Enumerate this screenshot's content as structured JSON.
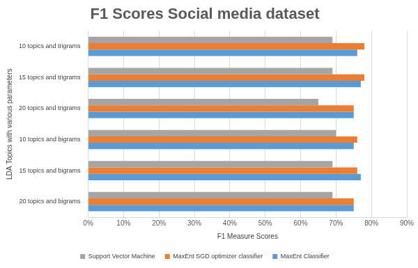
{
  "chart_data": {
    "type": "bar",
    "orientation": "horizontal",
    "title": "F1 Scores Social media dataset",
    "x_label": "F1 Measure Scores",
    "y_label": "LDA Topics with various parameters",
    "categories": [
      "10 topics and trigrams",
      "15 topics and trigrams",
      "20 topics and trigrams",
      "10 topics and bigrams",
      "15 topics and bigrams",
      "20 topics and bigrams"
    ],
    "series": [
      {
        "name": "Support Vector Machine",
        "color": "#a5a5a5",
        "values": [
          69,
          69,
          65,
          70,
          69,
          69
        ]
      },
      {
        "name": "MaxEnt SGD optimizer classifier",
        "color": "#ed7d31",
        "values": [
          78,
          78,
          75,
          76,
          76,
          75
        ]
      },
      {
        "name": "MaxEnt Classifier",
        "color": "#5b9bd5",
        "values": [
          76,
          77,
          75,
          75,
          77,
          75
        ]
      }
    ],
    "xlim": [
      0,
      90
    ],
    "xticks": [
      {
        "value": 0,
        "label": "0%"
      },
      {
        "value": 10,
        "label": "10%"
      },
      {
        "value": 20,
        "label": "20%"
      },
      {
        "value": 30,
        "label": "30%"
      },
      {
        "value": 40,
        "label": "40%"
      },
      {
        "value": 50,
        "label": "50%"
      },
      {
        "value": 60,
        "label": "60%"
      },
      {
        "value": 70,
        "label": "70%"
      },
      {
        "value": 80,
        "label": "80%"
      },
      {
        "value": 90,
        "label": "90%"
      }
    ],
    "grid": true,
    "legend": "bottom"
  }
}
